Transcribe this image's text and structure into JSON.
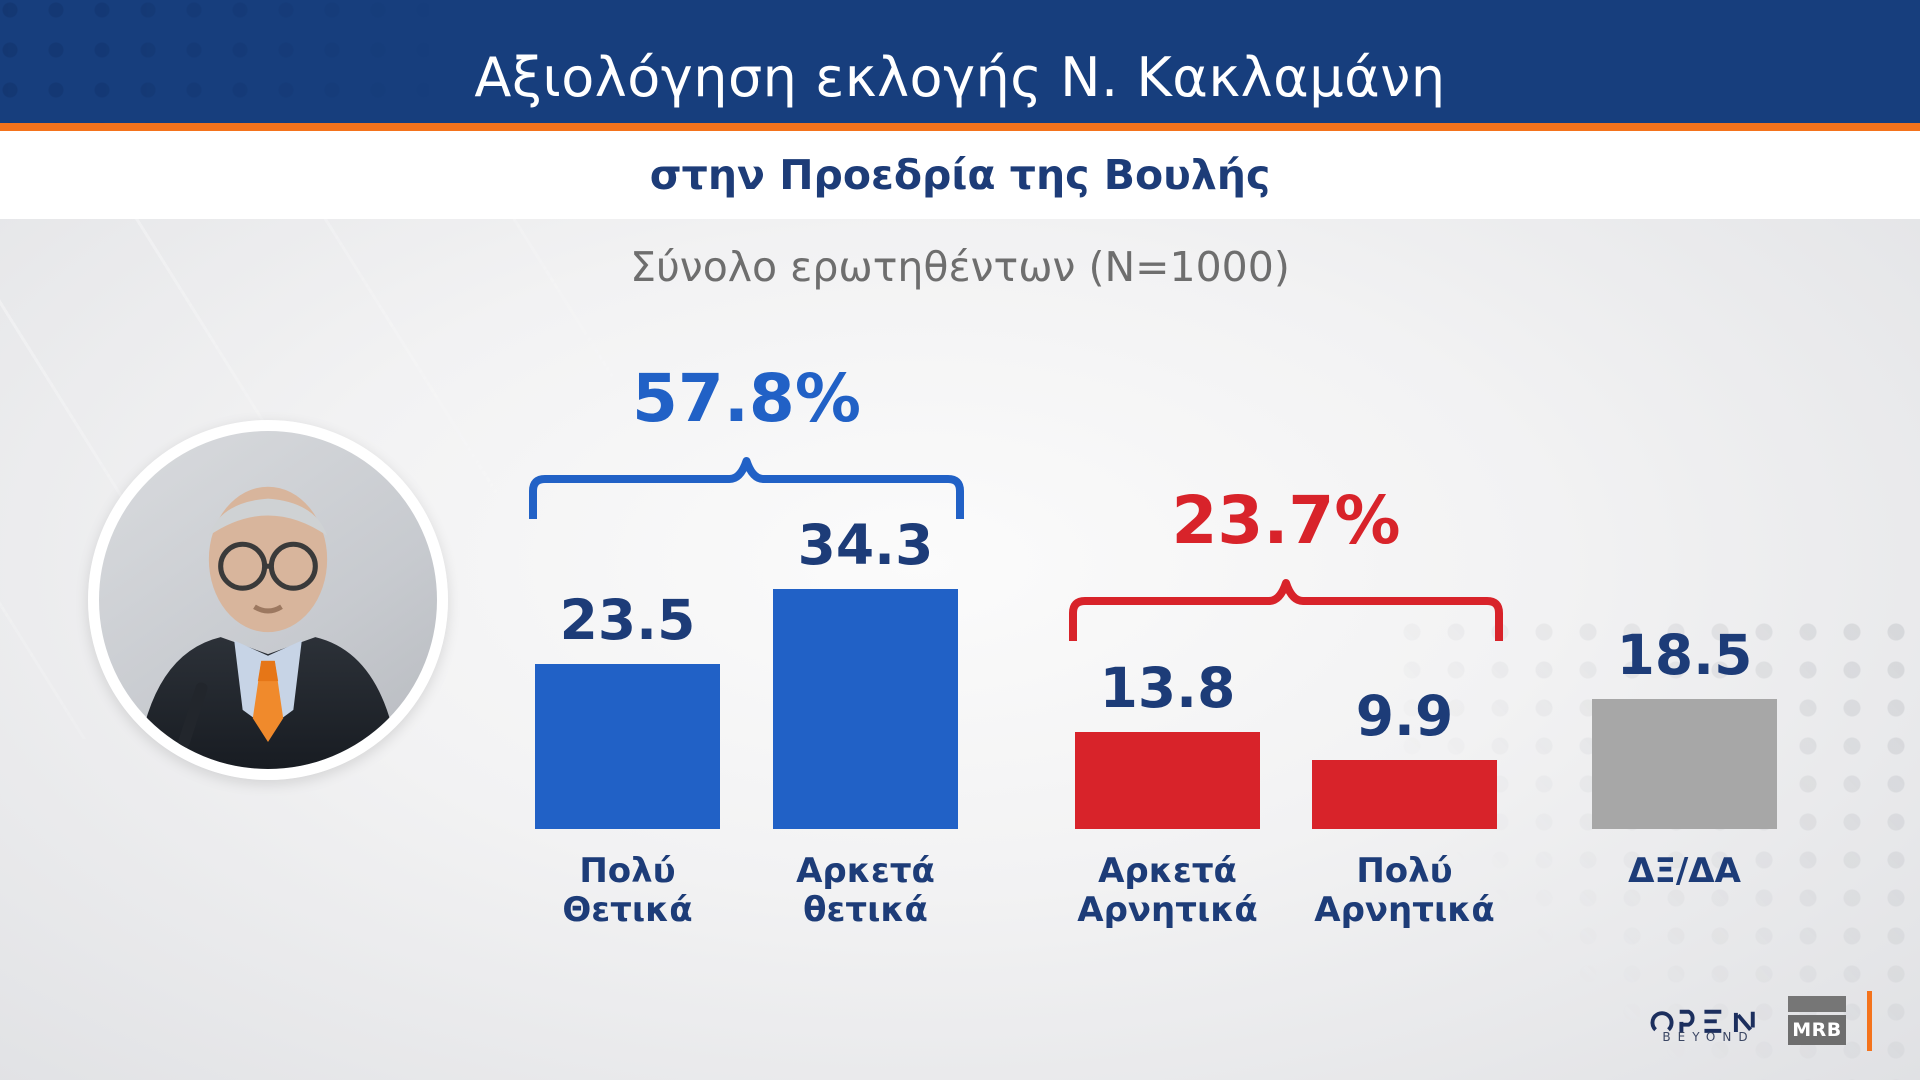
{
  "header": {
    "title": "Αξιολόγηση εκλογής Ν. Κακλαμάνη",
    "subtitle": "στην Προεδρία της Βουλής",
    "sample_note": "Σύνολο ερωτηθέντων (N=1000)"
  },
  "colors": {
    "header_bg": "#173e7d",
    "accent_orange": "#f4731c",
    "positive_blue": "#2161c6",
    "negative_red": "#d8232a",
    "neutral_gray": "#a7a7a7",
    "navy_text": "#1d3c78",
    "note_gray": "#6e6e6e"
  },
  "chart_data": {
    "type": "bar",
    "title": "Αξιολόγηση εκλογής Ν. Κακλαμάνη στην Προεδρία της Βουλής",
    "subtitle": "Σύνολο ερωτηθέντων (N=1000)",
    "categories": [
      "Πολύ Θετικά",
      "Αρκετά θετικά",
      "Αρκετά Αρνητικά",
      "Πολύ Αρνητικά",
      "ΔΞ/ΔΑ"
    ],
    "category_lines": [
      [
        "Πολύ",
        "Θετικά"
      ],
      [
        "Αρκετά",
        "θετικά"
      ],
      [
        "Αρκετά",
        "Αρνητικά"
      ],
      [
        "Πολύ",
        "Αρνητικά"
      ],
      [
        "ΔΞ/ΔΑ"
      ]
    ],
    "values": [
      23.5,
      34.3,
      13.8,
      9.9,
      18.5
    ],
    "bar_colors": [
      "#2161c6",
      "#2161c6",
      "#d8232a",
      "#d8232a",
      "#a7a7a7"
    ],
    "value_label_color": "#1d3c78",
    "groups": [
      {
        "label": "57.8%",
        "from": 0,
        "to": 1,
        "color": "#2161c6"
      },
      {
        "label": "23.7%",
        "from": 2,
        "to": 3,
        "color": "#d8232a"
      }
    ],
    "ylim": [
      0,
      40
    ],
    "grid": false,
    "legend": false,
    "xlabel": "",
    "ylabel": ""
  },
  "footer": {
    "channel": "OPEN",
    "channel_sub": "BEYOND",
    "agency": "MRB"
  }
}
